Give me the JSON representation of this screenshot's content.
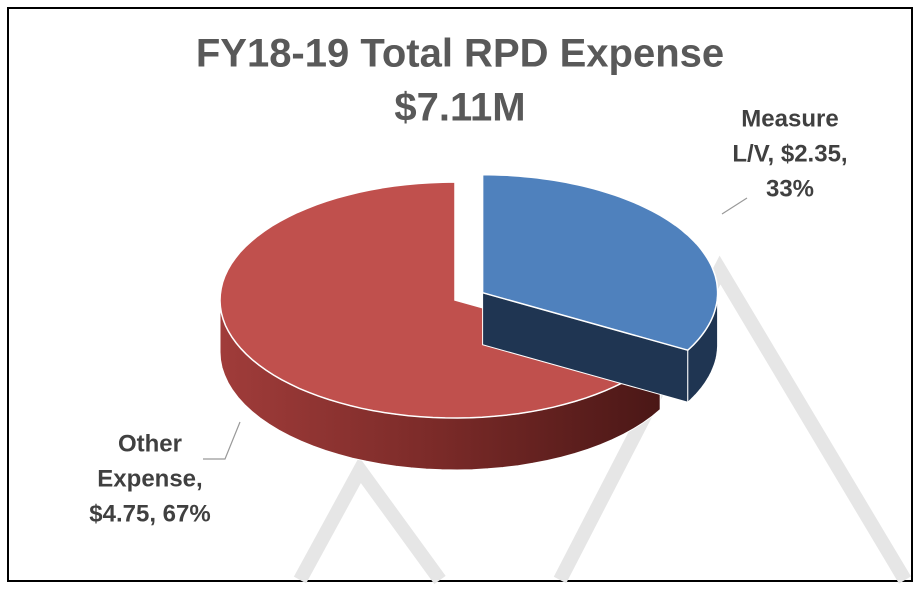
{
  "chart_data": {
    "type": "pie",
    "title": "FY18-19 Total RPD Expense",
    "subtitle": "$7.11M",
    "categories": [
      "Measure L/V",
      "Other Expense"
    ],
    "values": [
      2.35,
      4.75
    ],
    "colors": [
      "#4f81bd",
      "#c0504d"
    ],
    "exploded": [
      true,
      false
    ],
    "data_labels": [
      [
        "Measure",
        "L/V, $2.35,",
        "33%"
      ],
      [
        "Other",
        "Expense,",
        "$4.75, 67%"
      ]
    ]
  }
}
